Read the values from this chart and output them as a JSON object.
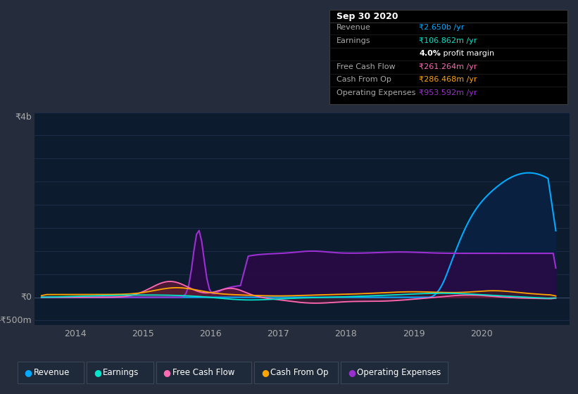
{
  "bg_color": "#252d3d",
  "plot_bg_color": "#0d1b2e",
  "revenue_color": "#00aaff",
  "earnings_color": "#00e5cc",
  "fcf_color": "#ff69b4",
  "cashfromop_color": "#ffa500",
  "opex_color": "#9b30d0",
  "revenue_fill_color": "#0d2a4a",
  "opex_fill_color": "#2a0d4a",
  "fcf_fill_color": "#8b2252",
  "ylabel_top": "₹4b",
  "ylabel_zero": "₹0",
  "ylabel_bottom": "-₹500m",
  "x_ticks": [
    2014,
    2015,
    2016,
    2017,
    2018,
    2019,
    2020
  ],
  "ylim_top": 4000,
  "ylim_bottom": -600,
  "xlim_left": 2013.4,
  "xlim_right": 2021.3,
  "legend_items": [
    {
      "label": "Revenue",
      "color": "#00aaff"
    },
    {
      "label": "Earnings",
      "color": "#00e5cc"
    },
    {
      "label": "Free Cash Flow",
      "color": "#ff69b4"
    },
    {
      "label": "Cash From Op",
      "color": "#ffa500"
    },
    {
      "label": "Operating Expenses",
      "color": "#9b30d0"
    }
  ],
  "tooltip_title": "Sep 30 2020",
  "tooltip_rows": [
    {
      "label": "Revenue",
      "value": "₹2.650b /yr",
      "lc": "#aaaaaa",
      "vc": "#00aaff",
      "bold_val": false
    },
    {
      "label": "Earnings",
      "value": "₹106.862m /yr",
      "lc": "#aaaaaa",
      "vc": "#00e5cc",
      "bold_val": false
    },
    {
      "label": "",
      "value": "",
      "lc": null,
      "vc": null,
      "bold_val": false,
      "special": "margin"
    },
    {
      "label": "Free Cash Flow",
      "value": "₹261.264m /yr",
      "lc": "#aaaaaa",
      "vc": "#ff69b4",
      "bold_val": false
    },
    {
      "label": "Cash From Op",
      "value": "₹286.468m /yr",
      "lc": "#aaaaaa",
      "vc": "#ffa500",
      "bold_val": false
    },
    {
      "label": "Operating Expenses",
      "value": "₹953.592m /yr",
      "lc": "#aaaaaa",
      "vc": "#9b30d0",
      "bold_val": false
    }
  ]
}
